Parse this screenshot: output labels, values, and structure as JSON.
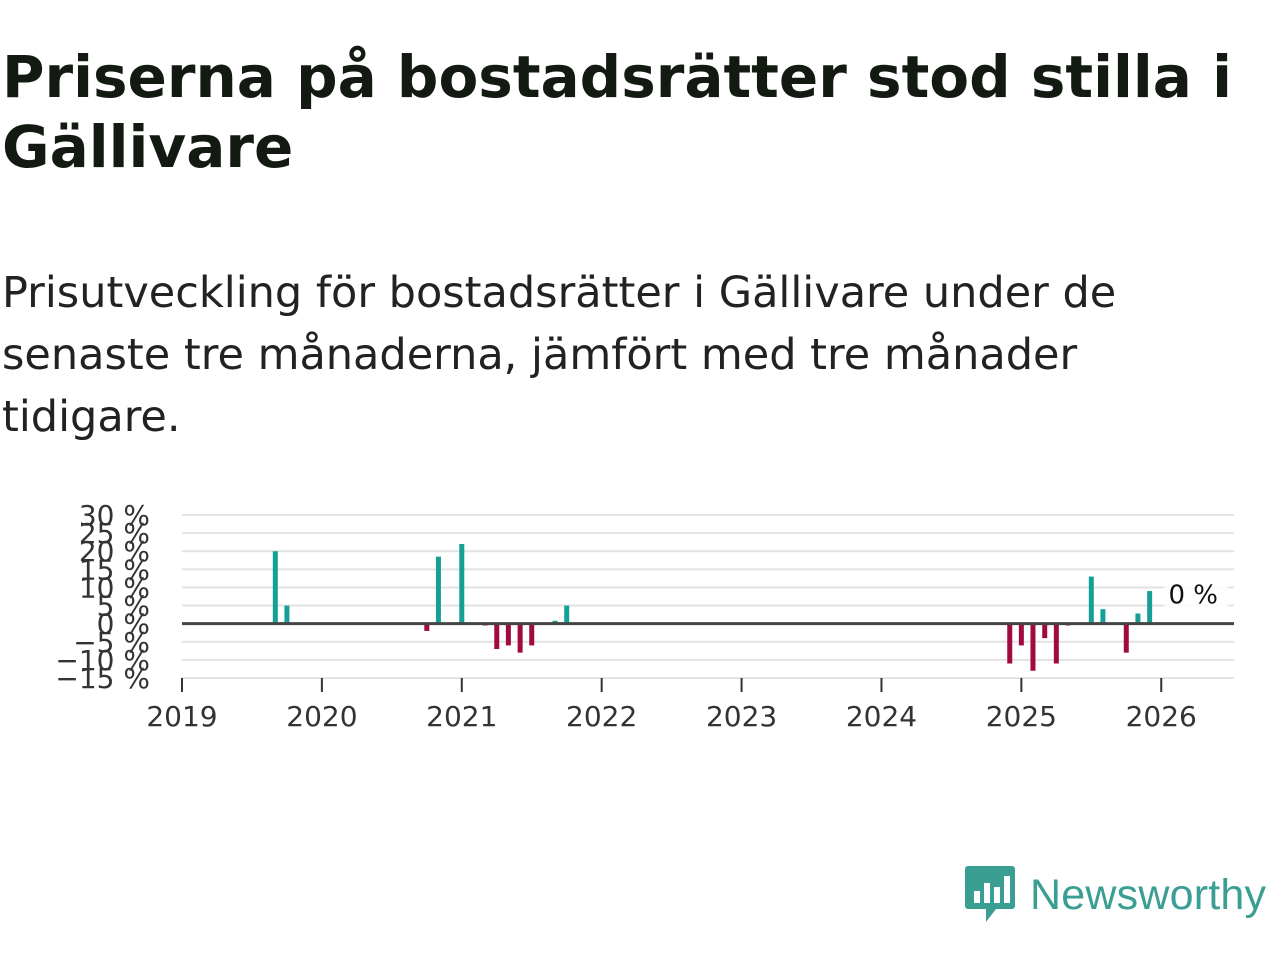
{
  "title": "Priserna på bostadsrätter stod stilla i Gällivare",
  "subtitle": "Prisutveckling för bostadsrätter i Gällivare under de senaste tre månaderna, jämfört med tre månader tidigare.",
  "brand": {
    "name": "Newsworthy",
    "color": "#3a9e93"
  },
  "colors": {
    "positive": "#14a094",
    "negative": "#a00a40",
    "grid": "#e2e2e2",
    "zero": "#444444"
  },
  "chart_data": {
    "type": "bar",
    "title": "",
    "xlabel": "",
    "ylabel": "",
    "ylim": [
      -15,
      30
    ],
    "xlim": [
      2019,
      2026.52
    ],
    "yticks": [
      30,
      25,
      20,
      15,
      10,
      5,
      0,
      -5,
      -10,
      -15
    ],
    "ytick_labels": [
      "30 %",
      "25 %",
      "20 %",
      "15 %",
      "10 %",
      "5 %",
      "0 %",
      "−5 %",
      "−10 %",
      "−15 %"
    ],
    "xticks": [
      2019,
      2020,
      2021,
      2022,
      2023,
      2024,
      2025,
      2026
    ],
    "xtick_labels": [
      "2019",
      "2020",
      "2021",
      "2022",
      "2023",
      "2024",
      "2025",
      "2026"
    ],
    "annotation": {
      "text": "0 %",
      "x": 2026.08,
      "y": 0
    },
    "series": [
      {
        "name": "Prisutveckling",
        "points": [
          {
            "x": 2019.667,
            "y": 20.0
          },
          {
            "x": 2019.75,
            "y": 5.0
          },
          {
            "x": 2020.75,
            "y": -2.0
          },
          {
            "x": 2020.833,
            "y": 18.5
          },
          {
            "x": 2021.0,
            "y": 22.0
          },
          {
            "x": 2021.167,
            "y": -0.5
          },
          {
            "x": 2021.25,
            "y": -7.0
          },
          {
            "x": 2021.333,
            "y": -6.0
          },
          {
            "x": 2021.417,
            "y": -8.0
          },
          {
            "x": 2021.5,
            "y": -6.0
          },
          {
            "x": 2021.667,
            "y": 0.8
          },
          {
            "x": 2021.75,
            "y": 5.0
          },
          {
            "x": 2024.917,
            "y": -11.0
          },
          {
            "x": 2025.0,
            "y": -6.0
          },
          {
            "x": 2025.083,
            "y": -13.0
          },
          {
            "x": 2025.167,
            "y": -4.0
          },
          {
            "x": 2025.25,
            "y": -11.0
          },
          {
            "x": 2025.333,
            "y": -0.5
          },
          {
            "x": 2025.5,
            "y": 13.0
          },
          {
            "x": 2025.583,
            "y": 4.0
          },
          {
            "x": 2025.75,
            "y": -8.0
          },
          {
            "x": 2025.833,
            "y": 2.8
          },
          {
            "x": 2025.917,
            "y": 9.0
          },
          {
            "x": 2026.0,
            "y": 0.0
          }
        ]
      }
    ]
  }
}
